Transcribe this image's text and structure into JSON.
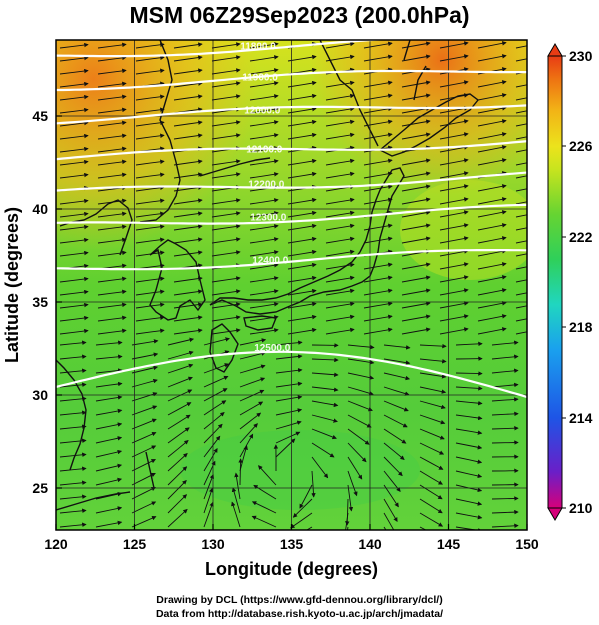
{
  "title": "MSM 06Z29Sep2023 (200.0hPa)",
  "xlabel": "Longitude (degrees)",
  "ylabel": "Latitude  (degrees)",
  "credit_line1": "Drawing by DCL (https://www.gfd-dennou.org/library/dcl/)",
  "credit_line2": "Data from http://database.rish.kyoto-u.ac.jp/arch/jmadata/",
  "chart_data": {
    "type": "heatmap",
    "xlim": [
      120,
      150
    ],
    "ylim": [
      22.4,
      47.6
    ],
    "x_ticks": [
      "120",
      "125",
      "130",
      "135",
      "140",
      "145",
      "150"
    ],
    "y_ticks": [
      "25",
      "30",
      "35",
      "40",
      "45"
    ],
    "colorbar": {
      "range": [
        210,
        230
      ],
      "ticks": [
        "230",
        "226",
        "222",
        "218",
        "214",
        "210"
      ],
      "colors": [
        "#d6007a",
        "#4b2bd3",
        "#1e55e6",
        "#1aa0ee",
        "#20d6c0",
        "#2fd05a",
        "#56d236",
        "#90dc2a",
        "#c8e41e",
        "#ece31c",
        "#f2b316",
        "#ee7212",
        "#e83c14"
      ]
    },
    "contours": [
      {
        "label": "11800.0",
        "lat": 46.8
      },
      {
        "label": "11900.0",
        "lat": 45.2
      },
      {
        "label": "12000.0",
        "lat": 43.5
      },
      {
        "label": "12100.0",
        "lat": 41.5
      },
      {
        "label": "12200.0",
        "lat": 39.7
      },
      {
        "label": "12300.0",
        "lat": 38.0
      },
      {
        "label": "12400.0",
        "lat": 35.8
      },
      {
        "label": "12500.0",
        "lat": 31.3
      }
    ]
  }
}
